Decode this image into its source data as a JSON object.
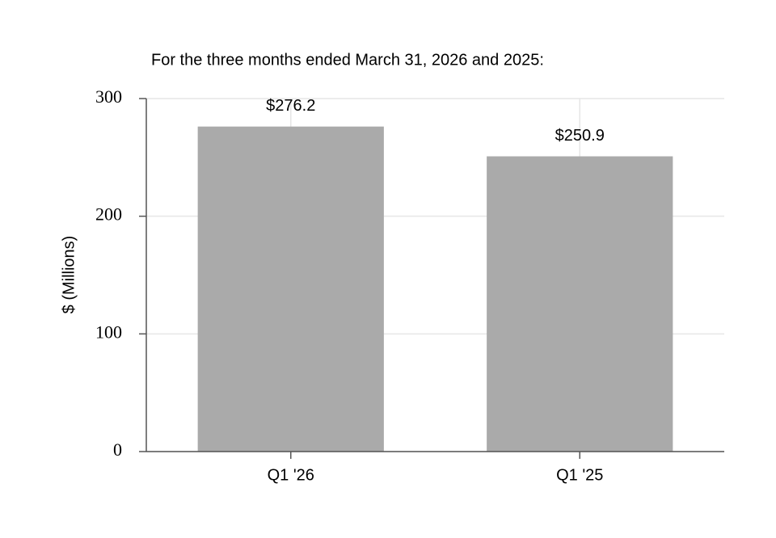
{
  "chart_data": {
    "type": "bar",
    "title": "For the three months ended March 31, 2026 and 2025:",
    "ylabel": "$ (Millions)",
    "categories": [
      "Q1 '26",
      "Q1 '25"
    ],
    "values": [
      276.2,
      250.9
    ],
    "value_labels": [
      "$276.2",
      "$250.9"
    ],
    "color": "#aaaaaa",
    "ylim": [
      0,
      300
    ],
    "yticks": [
      0,
      100,
      200,
      300
    ],
    "grid": true
  }
}
